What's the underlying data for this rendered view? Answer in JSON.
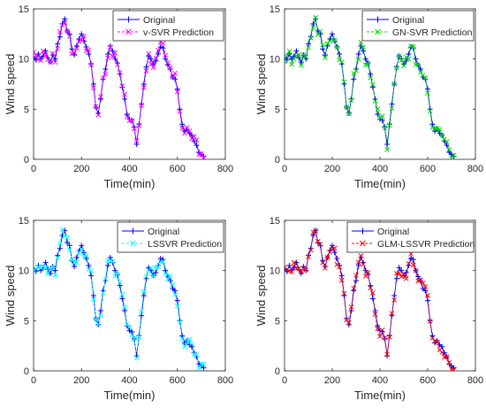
{
  "chart_data": [
    {
      "type": "line",
      "xlabel": "Time(min)",
      "ylabel": "Wind speed",
      "xlim": [
        0,
        800
      ],
      "ylim": [
        0,
        15
      ],
      "xticks": [
        "0",
        "200",
        "400",
        "600",
        "800"
      ],
      "yticks": [
        "0",
        "5",
        "10",
        "15"
      ],
      "grid": false,
      "legend_position": "top-right",
      "series": [
        {
          "name": "Original",
          "color": "#0000ff",
          "marker": "+",
          "line": "solid"
        },
        {
          "name": "v-SVR Prediction",
          "color": "#ff00ff",
          "marker": "x",
          "line": "dashed"
        }
      ]
    },
    {
      "type": "line",
      "xlabel": "Time(min)",
      "ylabel": "Wind speed",
      "xlim": [
        0,
        800
      ],
      "ylim": [
        0,
        15
      ],
      "xticks": [
        "0",
        "200",
        "400",
        "600",
        "800"
      ],
      "yticks": [
        "0",
        "5",
        "10",
        "15"
      ],
      "grid": false,
      "legend_position": "top-right",
      "series": [
        {
          "name": "Original",
          "color": "#0000ff",
          "marker": "+",
          "line": "solid"
        },
        {
          "name": "GN-SVR Prediction",
          "color": "#00dd00",
          "marker": "x",
          "line": "dashed"
        }
      ]
    },
    {
      "type": "line",
      "xlabel": "Time(min)",
      "ylabel": "Wind speed",
      "xlim": [
        0,
        800
      ],
      "ylim": [
        0,
        15
      ],
      "xticks": [
        "0",
        "200",
        "400",
        "600",
        "800"
      ],
      "yticks": [
        "0",
        "5",
        "10",
        "15"
      ],
      "grid": false,
      "legend_position": "top-right",
      "series": [
        {
          "name": "Original",
          "color": "#0000ff",
          "marker": "+",
          "line": "solid"
        },
        {
          "name": "LSSVR Prediction",
          "color": "#00ffff",
          "marker": "x",
          "line": "dashed"
        }
      ]
    },
    {
      "type": "line",
      "xlabel": "Time(min)",
      "ylabel": "Wind speed",
      "xlim": [
        0,
        800
      ],
      "ylim": [
        0,
        15
      ],
      "xticks": [
        "0",
        "200",
        "400",
        "600",
        "800"
      ],
      "yticks": [
        "0",
        "5",
        "10",
        "15"
      ],
      "grid": false,
      "legend_position": "top-right",
      "series": [
        {
          "name": "Original",
          "color": "#0000ff",
          "marker": "+",
          "line": "solid"
        },
        {
          "name": "GLM-LSSVR Prediction",
          "color": "#ff0000",
          "marker": "x",
          "line": "dashed"
        }
      ]
    }
  ],
  "wind_speed_series": {
    "x_start": 0,
    "x_step": 10,
    "y": [
      10.2,
      9.9,
      10.5,
      10.0,
      10.3,
      10.8,
      10.1,
      9.7,
      10.4,
      10.0,
      11.5,
      12.2,
      13.5,
      14.0,
      12.8,
      12.5,
      11.0,
      10.4,
      11.3,
      12.0,
      12.5,
      11.8,
      11.2,
      10.5,
      9.5,
      7.5,
      5.2,
      4.6,
      6.0,
      8.0,
      9.0,
      10.5,
      11.3,
      10.8,
      10.0,
      9.6,
      8.5,
      7.2,
      6.0,
      4.5,
      4.0,
      3.9,
      3.2,
      1.5,
      3.5,
      5.5,
      7.5,
      9.2,
      10.3,
      10.0,
      9.5,
      9.8,
      10.5,
      11.2,
      11.1,
      10.0,
      9.4,
      9.0,
      8.2,
      8.0,
      7.0,
      5.0,
      3.5,
      2.8,
      3.0,
      2.6,
      2.4,
      1.8,
      1.4,
      0.7,
      0.5,
      0.3
    ]
  }
}
